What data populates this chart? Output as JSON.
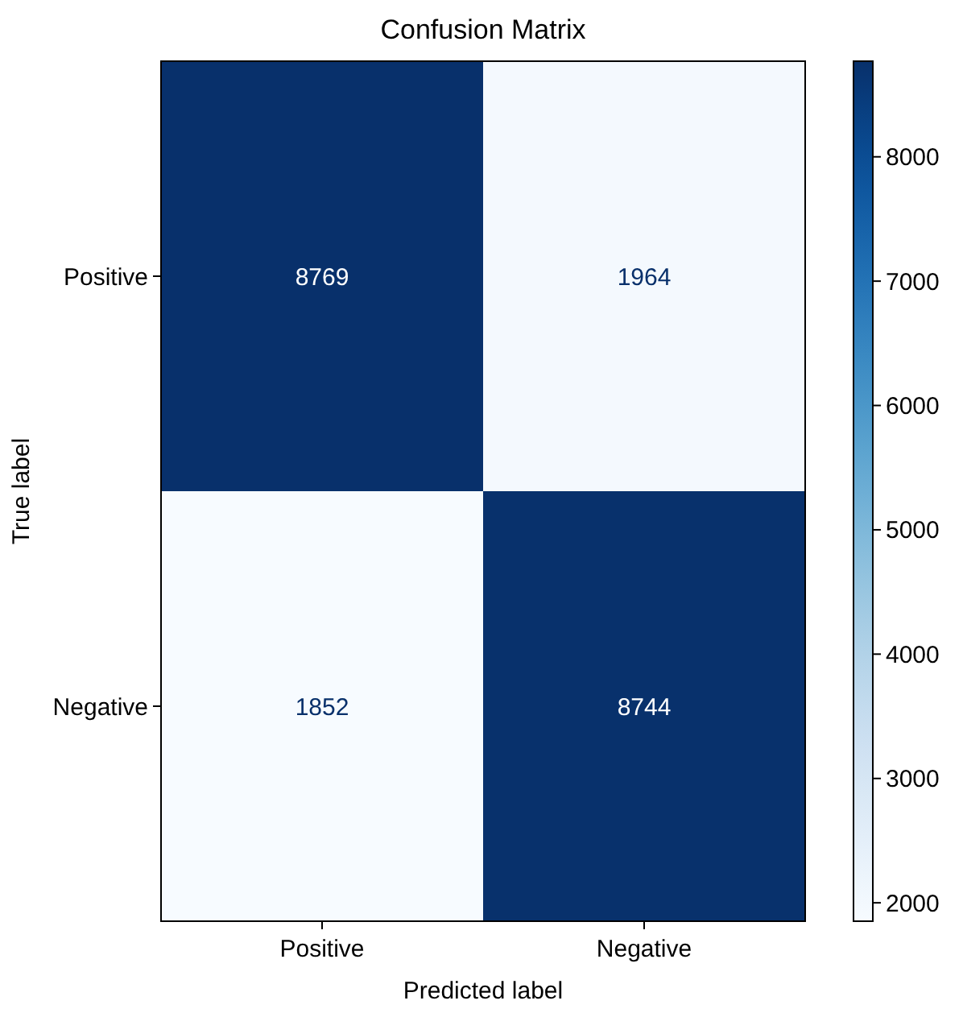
{
  "chart_data": {
    "type": "heatmap",
    "title": "Confusion Matrix",
    "xlabel": "Predicted label",
    "ylabel": "True label",
    "categories": [
      "Positive",
      "Negative"
    ],
    "y_categories": [
      "Positive",
      "Negative"
    ],
    "cells": [
      [
        8769,
        1964
      ],
      [
        1852,
        8744
      ]
    ],
    "clim": [
      1852,
      8769
    ],
    "cticks": [
      2000,
      3000,
      4000,
      5000,
      6000,
      7000,
      8000
    ],
    "data_labels": true
  }
}
